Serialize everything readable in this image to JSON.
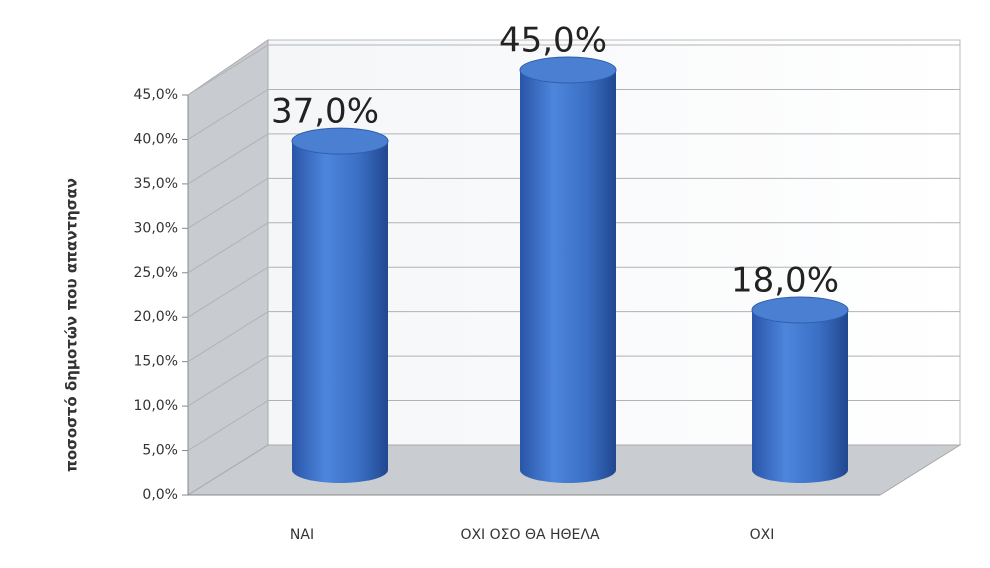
{
  "chart_data": {
    "type": "bar",
    "y_axis_label": "ποσοστό δημοτών που απαντησαν",
    "categories": [
      "ΝΑΙ",
      "ΟΧΙ ΟΣΟ ΘΑ ΗΘΕΛΑ",
      "ΟΧΙ"
    ],
    "values": [
      37,
      45,
      18
    ],
    "value_labels": [
      "37,0%",
      "45,0%",
      "18,0%"
    ],
    "color": "#3a6fc4",
    "ylim": [
      0,
      45
    ],
    "yticks": [
      {
        "value": 0,
        "label": "0,0%"
      },
      {
        "value": 5,
        "label": "5,0%"
      },
      {
        "value": 10,
        "label": "10,0%"
      },
      {
        "value": 15,
        "label": "15,0%"
      },
      {
        "value": 20,
        "label": "20,0%"
      },
      {
        "value": 25,
        "label": "25,0%"
      },
      {
        "value": 30,
        "label": "30,0%"
      },
      {
        "value": 35,
        "label": "35,0%"
      },
      {
        "value": 40,
        "label": "40,0%"
      },
      {
        "value": 45,
        "label": "45,0%"
      }
    ],
    "grid": true
  }
}
